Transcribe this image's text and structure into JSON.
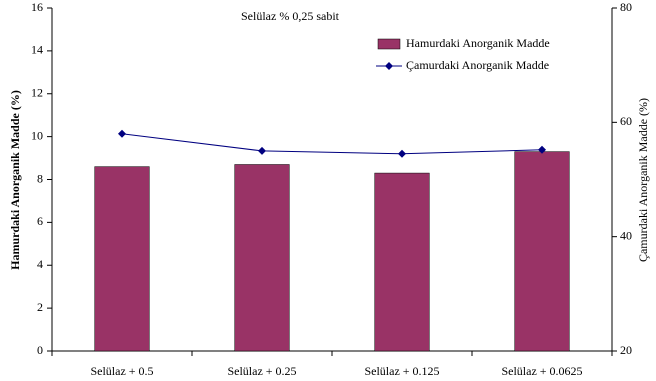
{
  "chart_data": {
    "type": "bar",
    "annotation": "Selülaz % 0,25 sabit",
    "y_label": "Hamurdaki Anorganik Madde (%)",
    "y2_label": "Çamurdaki Anorganik Madde (%)",
    "categories": [
      "Selülaz + 0.5",
      "Selülaz + 0.25",
      "Selülaz + 0.125",
      "Selülaz + 0.0625"
    ],
    "series": [
      {
        "name": "Hamurdaki Anorganik Madde",
        "type": "bar",
        "color": "#993366",
        "values": [
          8.6,
          8.7,
          8.3,
          9.3
        ]
      },
      {
        "name": "Çamurdaki Anorganik Madde",
        "type": "line",
        "color": "#000080",
        "axis": "y2",
        "values": [
          58.0,
          55.0,
          54.5,
          55.2
        ]
      }
    ],
    "ylim": [
      0,
      16
    ],
    "yticks": [
      0,
      2,
      4,
      6,
      8,
      10,
      12,
      14,
      16
    ],
    "y2lim": [
      20,
      80
    ],
    "y2ticks": [
      20,
      40,
      60,
      80
    ],
    "grid": false
  }
}
